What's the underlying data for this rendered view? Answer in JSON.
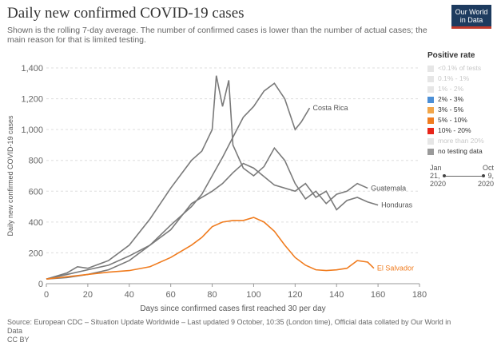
{
  "header": {
    "title": "Daily new confirmed COVID-19 cases",
    "subtitle": "Shown is the rolling 7-day average. The number of confirmed cases is lower than the number of actual cases; the main reason for that is limited testing.",
    "logo_line1": "Our World",
    "logo_line2": "in Data"
  },
  "legend": {
    "title": "Positive rate",
    "items": [
      {
        "label": "<0.1% of tests",
        "color": "#e6e6e6",
        "faded": true
      },
      {
        "label": "0.1% - 1%",
        "color": "#e6e6e6",
        "faded": true
      },
      {
        "label": "1% - 2%",
        "color": "#e6e6e6",
        "faded": true
      },
      {
        "label": "2% - 3%",
        "color": "#4c8fd6",
        "faded": false
      },
      {
        "label": "3% - 5%",
        "color": "#f2a64a",
        "faded": false
      },
      {
        "label": "5% - 10%",
        "color": "#f07c1f",
        "faded": false
      },
      {
        "label": "10% - 20%",
        "color": "#e8251a",
        "faded": false
      },
      {
        "label": "more than 20%",
        "color": "#e6e6e6",
        "faded": true
      },
      {
        "label": "no testing data",
        "color": "#9a9a9a",
        "faded": false
      }
    ]
  },
  "timeline": {
    "start_label": "Jan",
    "start_day": "21,",
    "start_year": "2020",
    "end_label": "Oct",
    "end_day": "9,",
    "end_year": "2020"
  },
  "source": {
    "line1": "Source: European CDC – Situation Update Worldwide – Last updated 9 October, 10:35 (London time), Official data collated by Our World in",
    "line2": "Data",
    "line3": "CC BY"
  },
  "chart_data": {
    "type": "line",
    "title": "Daily new confirmed COVID-19 cases",
    "xlabel": "Days since confirmed cases first reached 30 per day",
    "ylabel": "Daily new confirmed COVID-19 cases",
    "xlim": [
      0,
      180
    ],
    "ylim": [
      0,
      1400
    ],
    "x_ticks": [
      0,
      20,
      40,
      60,
      80,
      100,
      120,
      140,
      160,
      180
    ],
    "y_ticks": [
      0,
      200,
      400,
      600,
      800,
      1000,
      1200,
      1400
    ],
    "y_tick_labels": [
      "0",
      "200",
      "400",
      "600",
      "800",
      "1,000",
      "1,200",
      "1,400"
    ],
    "grid": true,
    "legend_position": "right",
    "series": [
      {
        "name": "Costa Rica",
        "color": "#7a7a7a",
        "x": [
          0,
          10,
          20,
          30,
          40,
          50,
          60,
          70,
          75,
          80,
          85,
          90,
          95,
          100,
          105,
          110,
          115,
          120,
          123,
          127
        ],
        "values": [
          30,
          40,
          60,
          90,
          150,
          250,
          380,
          500,
          580,
          700,
          820,
          950,
          1080,
          1150,
          1250,
          1300,
          1200,
          1000,
          1050,
          1140
        ]
      },
      {
        "name": "Guatemala",
        "color": "#7a7a7a",
        "x": [
          0,
          10,
          15,
          20,
          30,
          40,
          50,
          60,
          70,
          75,
          80,
          82,
          85,
          88,
          90,
          95,
          100,
          105,
          110,
          115,
          120,
          125,
          130,
          135,
          140,
          145,
          150,
          155
        ],
        "values": [
          30,
          70,
          110,
          100,
          150,
          250,
          420,
          620,
          800,
          860,
          1000,
          1350,
          1150,
          1320,
          900,
          750,
          700,
          760,
          880,
          800,
          650,
          550,
          600,
          520,
          580,
          600,
          650,
          620
        ]
      },
      {
        "name": "Honduras",
        "color": "#7a7a7a",
        "x": [
          0,
          10,
          20,
          30,
          40,
          50,
          60,
          70,
          80,
          85,
          90,
          95,
          100,
          110,
          120,
          125,
          130,
          135,
          140,
          145,
          150,
          155,
          160
        ],
        "values": [
          30,
          60,
          90,
          120,
          180,
          250,
          350,
          520,
          600,
          650,
          720,
          780,
          750,
          640,
          600,
          650,
          560,
          600,
          480,
          540,
          560,
          530,
          510
        ]
      },
      {
        "name": "El Salvador",
        "color": "#f07c1f",
        "x": [
          0,
          10,
          20,
          30,
          40,
          50,
          60,
          70,
          75,
          80,
          85,
          90,
          95,
          100,
          105,
          110,
          115,
          120,
          125,
          130,
          135,
          140,
          145,
          150,
          155,
          158
        ],
        "values": [
          30,
          45,
          60,
          75,
          85,
          110,
          170,
          250,
          300,
          370,
          400,
          410,
          410,
          430,
          400,
          340,
          250,
          170,
          120,
          90,
          85,
          90,
          100,
          150,
          140,
          100
        ]
      }
    ],
    "annotations": [
      "Costa Rica",
      "Guatemala",
      "Honduras",
      "El Salvador"
    ]
  }
}
